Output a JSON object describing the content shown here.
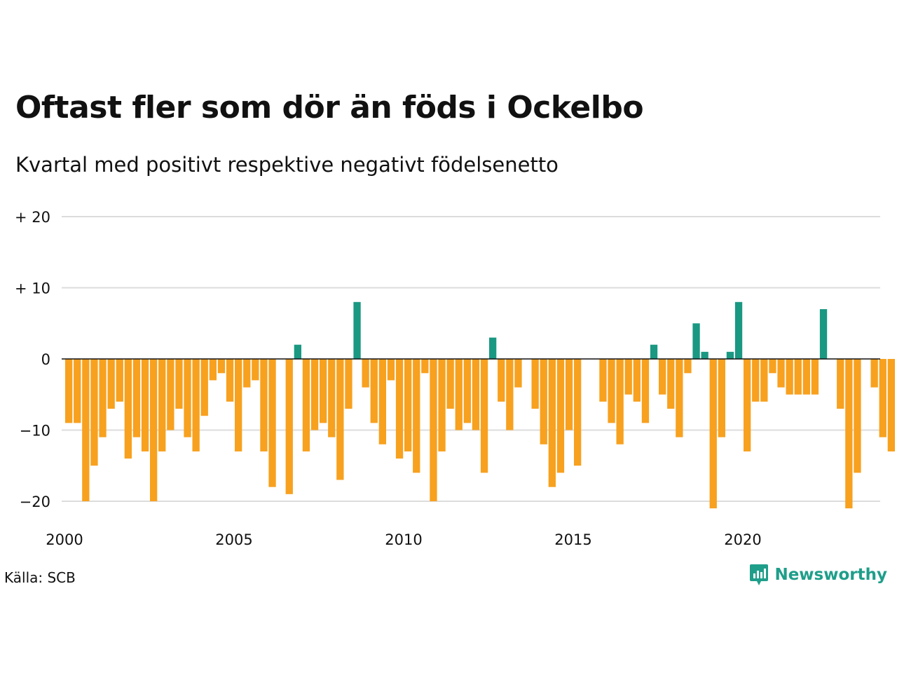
{
  "title": "Oftast fler som dör än föds i Ockelbo",
  "subtitle": "Kvartal med positivt respektive negativt födelsenetto",
  "source": "Källa: SCB",
  "brand": "Newsworthy",
  "colors": {
    "positive": "#1a9882",
    "negative": "#f7a11f",
    "grid": "#dcdcdc",
    "brand": "#1f9e8a"
  },
  "chart_data": {
    "type": "bar",
    "x_start": 2000,
    "periods_per_year": 4,
    "x_ticks": [
      2000,
      2005,
      2010,
      2015,
      2020
    ],
    "x_tick_labels": [
      "2000",
      "2005",
      "2010",
      "2015",
      "2020"
    ],
    "y_ticks": [
      20,
      10,
      0,
      -10,
      -20
    ],
    "y_tick_labels": [
      "+ 20",
      "+ 10",
      "0",
      "−10",
      "−20"
    ],
    "ylim": [
      -24,
      20
    ],
    "grid": true,
    "values": [
      -9,
      -9,
      -20,
      -15,
      -11,
      -7,
      -6,
      -14,
      -11,
      -13,
      -20,
      -13,
      -10,
      -7,
      -11,
      -13,
      -8,
      -3,
      -2,
      -6,
      -13,
      -4,
      -3,
      -13,
      -18,
      0,
      -19,
      2,
      -13,
      -10,
      -9,
      -11,
      -17,
      -7,
      8,
      -4,
      -9,
      -12,
      -3,
      -14,
      -13,
      -16,
      -2,
      -20,
      -13,
      -7,
      -10,
      -9,
      -10,
      -16,
      3,
      -6,
      -10,
      -4,
      0,
      -7,
      -12,
      -18,
      -16,
      -10,
      -15,
      0,
      0,
      -6,
      -9,
      -12,
      -5,
      -6,
      -9,
      2,
      -5,
      -7,
      -11,
      -2,
      5,
      1,
      -21,
      -11,
      1,
      8,
      -13,
      -6,
      -6,
      -2,
      -4,
      -5,
      -5,
      -5,
      -5,
      7,
      0,
      -7,
      -21,
      -16,
      0,
      -4,
      -11,
      -13
    ]
  }
}
